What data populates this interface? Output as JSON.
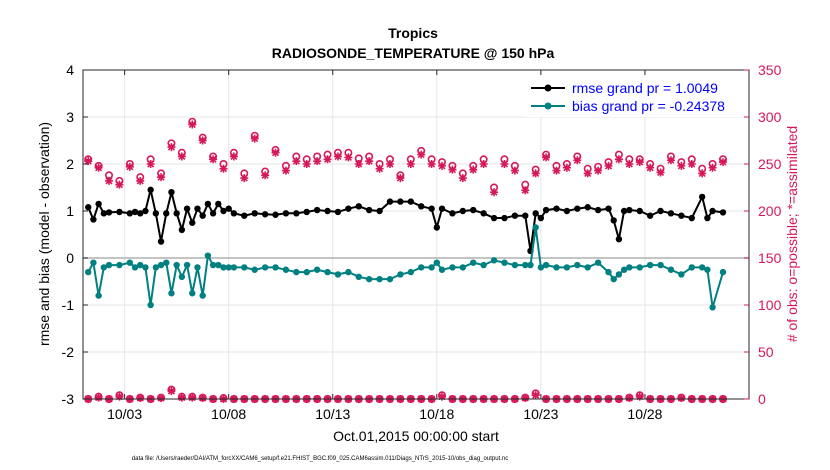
{
  "chart_data": {
    "type": "line",
    "title": "Tropics",
    "subtitle": "RADIOSONDE_TEMPERATURE @ 150 hPa",
    "xlabel": "Oct.01,2015 00:00:00 start",
    "ylabel": "rmse and bias (model - observation)",
    "y2label": "# of obs: o=possible; *=assimilated",
    "footnote": "data file: /Users/raeder/DAI/ATM_forcXX/CAM6_setup/f.e21.FHIST_BGC.f09_025.CAM6assim.011/Diags_NTrS_2015-10/obs_diag_output.nc",
    "xlim": [
      1,
      33
    ],
    "ylim": [
      -3,
      4
    ],
    "y2lim": [
      0,
      350
    ],
    "xticks": [
      3,
      8,
      13,
      18,
      23,
      28
    ],
    "xtick_labels": [
      "10/03",
      "10/08",
      "10/13",
      "10/18",
      "10/23",
      "10/28"
    ],
    "yticks": [
      -3,
      -2,
      -1,
      0,
      1,
      2,
      3,
      4
    ],
    "ytick_labels": [
      "-3",
      "-2",
      "-1",
      "0",
      "1",
      "2",
      "3",
      "4"
    ],
    "y2ticks": [
      0,
      50,
      100,
      150,
      200,
      250,
      300,
      350
    ],
    "y2tick_labels": [
      "0",
      "50",
      "100",
      "150",
      "200",
      "250",
      "300",
      "350"
    ],
    "grid": true,
    "legend_position": "top-right",
    "colors": {
      "rmse": "#000000",
      "bias": "#008080",
      "obs": "#d6185a",
      "zero": "#b0b0b0",
      "legend_text": "#0000ff",
      "axis": "#262626"
    },
    "series": [
      {
        "name": "rmse grand pr = 1.0049",
        "axis": "left",
        "x": [
          1.25,
          1.5,
          1.75,
          2,
          2.25,
          2.75,
          3.25,
          3.5,
          3.75,
          4,
          4.25,
          4.5,
          4.75,
          5,
          5.25,
          5.5,
          5.75,
          6,
          6.25,
          6.5,
          6.75,
          7,
          7.25,
          7.5,
          7.75,
          8,
          8.25,
          8.75,
          9.25,
          9.75,
          10.25,
          10.75,
          11.25,
          11.75,
          12.25,
          12.75,
          13.25,
          13.75,
          14.25,
          14.75,
          15.25,
          15.75,
          16.25,
          16.75,
          17.25,
          17.75,
          18,
          18.25,
          18.75,
          19.25,
          19.75,
          20.25,
          20.75,
          21.25,
          21.75,
          22.25,
          22.5,
          22.75,
          23,
          23.25,
          23.75,
          24.25,
          24.75,
          25.25,
          25.75,
          26.25,
          26.5,
          26.75,
          27,
          27.25,
          27.75,
          28.25,
          28.75,
          29.25,
          29.75,
          30.25,
          30.75,
          31,
          31.25,
          31.75
        ],
        "values": [
          1.08,
          0.82,
          1.15,
          0.95,
          0.97,
          0.98,
          0.95,
          0.98,
          0.95,
          1.0,
          1.45,
          0.95,
          0.35,
          0.95,
          1.4,
          0.95,
          0.6,
          1.05,
          0.75,
          1.05,
          0.9,
          1.15,
          0.95,
          1.15,
          1.0,
          1.05,
          0.95,
          0.9,
          0.95,
          0.93,
          0.92,
          0.95,
          0.95,
          0.98,
          1.02,
          1.0,
          0.98,
          1.05,
          1.1,
          1.02,
          1.0,
          1.2,
          1.2,
          1.2,
          1.1,
          1.05,
          0.65,
          1.05,
          0.95,
          1.0,
          1.02,
          0.95,
          0.85,
          0.85,
          0.9,
          0.9,
          0.15,
          0.95,
          0.85,
          1.02,
          1.05,
          1.0,
          1.05,
          1.08,
          1.02,
          1.05,
          0.8,
          0.4,
          1.0,
          1.02,
          1.0,
          0.9,
          1.0,
          0.95,
          0.9,
          0.85,
          1.3,
          0.85,
          1.0,
          0.97
        ]
      },
      {
        "name": "bias grand pr = -0.24378",
        "axis": "left",
        "x": [
          1.25,
          1.5,
          1.75,
          2,
          2.25,
          2.75,
          3.25,
          3.5,
          3.75,
          4,
          4.25,
          4.5,
          4.75,
          5,
          5.25,
          5.5,
          5.75,
          6,
          6.25,
          6.5,
          6.75,
          7,
          7.25,
          7.5,
          7.75,
          8,
          8.25,
          8.75,
          9.25,
          9.75,
          10.25,
          10.75,
          11.25,
          11.75,
          12.25,
          12.75,
          13.25,
          13.75,
          14.25,
          14.75,
          15.25,
          15.75,
          16.25,
          16.75,
          17.25,
          17.75,
          18,
          18.25,
          18.75,
          19.25,
          19.75,
          20.25,
          20.75,
          21.25,
          21.75,
          22.25,
          22.5,
          22.75,
          23,
          23.25,
          23.75,
          24.25,
          24.75,
          25.25,
          25.75,
          26.25,
          26.5,
          26.75,
          27,
          27.25,
          27.75,
          28.25,
          28.75,
          29.25,
          29.75,
          30.25,
          30.75,
          31,
          31.25,
          31.75
        ],
        "values": [
          -0.3,
          -0.1,
          -0.8,
          -0.2,
          -0.15,
          -0.15,
          -0.1,
          -0.2,
          -0.15,
          -0.2,
          -1.0,
          -0.2,
          -0.15,
          -0.1,
          -0.75,
          -0.15,
          -0.4,
          -0.15,
          -0.75,
          -0.2,
          -0.8,
          0.05,
          -0.15,
          -0.15,
          -0.2,
          -0.2,
          -0.2,
          -0.2,
          -0.25,
          -0.2,
          -0.2,
          -0.25,
          -0.3,
          -0.3,
          -0.25,
          -0.3,
          -0.35,
          -0.3,
          -0.4,
          -0.45,
          -0.45,
          -0.45,
          -0.35,
          -0.3,
          -0.2,
          -0.2,
          -0.1,
          -0.25,
          -0.2,
          -0.2,
          -0.1,
          -0.15,
          -0.05,
          -0.1,
          -0.15,
          -0.15,
          -0.15,
          0.65,
          -0.2,
          -0.15,
          -0.2,
          -0.2,
          -0.15,
          -0.2,
          -0.1,
          -0.3,
          -0.45,
          -0.35,
          -0.25,
          -0.2,
          -0.2,
          -0.15,
          -0.15,
          -0.25,
          -0.35,
          -0.2,
          -0.2,
          -0.25,
          -1.05,
          -0.3
        ]
      },
      {
        "name": "# of obs possible",
        "axis": "right",
        "marker": "o",
        "x": [
          1.25,
          1.75,
          2.25,
          2.75,
          3.25,
          3.75,
          4.25,
          4.75,
          5.25,
          5.75,
          6.25,
          6.75,
          7.25,
          7.75,
          8.25,
          8.75,
          9.25,
          9.75,
          10.25,
          10.75,
          11.25,
          11.75,
          12.25,
          12.75,
          13.25,
          13.75,
          14.25,
          14.75,
          15.25,
          15.75,
          16.25,
          16.75,
          17.25,
          17.75,
          18.25,
          18.75,
          19.25,
          19.75,
          20.25,
          20.75,
          21.25,
          21.75,
          22.25,
          22.75,
          23.25,
          23.75,
          24.25,
          24.75,
          25.25,
          25.75,
          26.25,
          26.75,
          27.25,
          27.75,
          28.25,
          28.75,
          29.25,
          29.75,
          30.25,
          30.75,
          31.25,
          31.75
        ],
        "values": [
          255,
          248,
          238,
          232,
          250,
          236,
          255,
          240,
          272,
          262,
          295,
          278,
          258,
          250,
          262,
          240,
          280,
          242,
          265,
          248,
          258,
          255,
          258,
          260,
          262,
          262,
          256,
          258,
          250,
          255,
          238,
          255,
          264,
          255,
          252,
          248,
          240,
          248,
          255,
          225,
          255,
          248,
          228,
          244,
          260,
          248,
          250,
          258,
          245,
          247,
          252,
          260,
          255,
          255,
          250,
          245,
          258,
          252,
          255,
          245,
          250,
          255
        ]
      },
      {
        "name": "# of obs assimilated",
        "axis": "right",
        "marker": "*",
        "x": [
          1.25,
          1.75,
          2.25,
          2.75,
          3.25,
          3.75,
          4.25,
          4.75,
          5.25,
          5.75,
          6.25,
          6.75,
          7.25,
          7.75,
          8.25,
          8.75,
          9.25,
          9.75,
          10.25,
          10.75,
          11.25,
          11.75,
          12.25,
          12.75,
          13.25,
          13.75,
          14.25,
          14.75,
          15.25,
          15.75,
          16.25,
          16.75,
          17.25,
          17.75,
          18.25,
          18.75,
          19.25,
          19.75,
          20.25,
          20.75,
          21.25,
          21.75,
          22.25,
          22.75,
          23.25,
          23.75,
          24.25,
          24.75,
          25.25,
          25.75,
          26.25,
          26.75,
          27.25,
          27.75,
          28.25,
          28.75,
          29.25,
          29.75,
          30.25,
          30.75,
          31.25,
          31.75
        ],
        "values": [
          253,
          246,
          232,
          228,
          247,
          232,
          250,
          236,
          268,
          258,
          292,
          275,
          255,
          245,
          258,
          235,
          277,
          238,
          262,
          243,
          253,
          250,
          253,
          255,
          258,
          257,
          250,
          253,
          245,
          250,
          235,
          250,
          260,
          250,
          248,
          244,
          235,
          244,
          250,
          220,
          250,
          243,
          222,
          240,
          257,
          243,
          246,
          254,
          240,
          243,
          248,
          255,
          250,
          252,
          246,
          241,
          254,
          248,
          250,
          240,
          246,
          252
        ]
      },
      {
        "name": "# of obs possible (bottom)",
        "axis": "left",
        "marker": "o",
        "x": [
          1.25,
          1.75,
          2.25,
          2.75,
          3.25,
          3.75,
          4.25,
          4.75,
          5.25,
          5.75,
          6.25,
          6.75,
          7.25,
          7.75,
          8.25,
          8.75,
          9.25,
          9.75,
          10.25,
          10.75,
          11.25,
          11.75,
          12.25,
          12.75,
          13.25,
          13.75,
          14.25,
          14.75,
          15.25,
          15.75,
          16.25,
          16.75,
          17.25,
          17.75,
          18.25,
          18.75,
          19.25,
          19.75,
          20.25,
          20.75,
          21.25,
          21.75,
          22.25,
          22.75,
          23.25,
          23.75,
          24.25,
          24.75,
          25.25,
          25.75,
          26.25,
          26.75,
          27.25,
          27.75,
          28.25,
          28.75,
          29.25,
          29.75,
          30.25,
          30.75,
          31.25,
          31.75
        ],
        "values": [
          -3.0,
          -2.95,
          -3.0,
          -2.92,
          -3.0,
          -2.97,
          -3.0,
          -2.97,
          -2.8,
          -2.95,
          -2.95,
          -2.97,
          -3.0,
          -2.98,
          -3.0,
          -3.0,
          -3.0,
          -3.0,
          -3.0,
          -3.0,
          -3.0,
          -3.0,
          -3.0,
          -3.0,
          -3.0,
          -3.0,
          -3.0,
          -3.0,
          -3.0,
          -3.0,
          -3.0,
          -3.0,
          -3.0,
          -3.0,
          -2.92,
          -3.0,
          -3.0,
          -3.0,
          -3.0,
          -3.0,
          -3.0,
          -3.0,
          -2.97,
          -2.88,
          -3.0,
          -3.0,
          -3.0,
          -3.0,
          -3.0,
          -3.0,
          -3.0,
          -3.0,
          -2.97,
          -2.92,
          -3.0,
          -3.0,
          -3.0,
          -2.97,
          -3.0,
          -3.0,
          -3.0,
          -3.0
        ]
      },
      {
        "name": "# of obs assimilated (bottom)",
        "axis": "left",
        "marker": "*",
        "x": [
          1.25,
          1.75,
          2.25,
          2.75,
          3.25,
          3.75,
          4.25,
          4.75,
          5.25,
          5.75,
          6.25,
          6.75,
          7.25,
          7.75,
          8.25,
          8.75,
          9.25,
          9.75,
          10.25,
          10.75,
          11.25,
          11.75,
          12.25,
          12.75,
          13.25,
          13.75,
          14.25,
          14.75,
          15.25,
          15.75,
          16.25,
          16.75,
          17.25,
          17.75,
          18.25,
          18.75,
          19.25,
          19.75,
          20.25,
          20.75,
          21.25,
          21.75,
          22.25,
          22.75,
          23.25,
          23.75,
          24.25,
          24.75,
          25.25,
          25.75,
          26.25,
          26.75,
          27.25,
          27.75,
          28.25,
          28.75,
          29.25,
          29.75,
          30.25,
          30.75,
          31.25,
          31.75
        ],
        "values": [
          -3.0,
          -2.97,
          -3.0,
          -2.95,
          -3.0,
          -2.98,
          -3.0,
          -2.98,
          -2.83,
          -2.97,
          -2.97,
          -2.98,
          -3.0,
          -3.0,
          -3.0,
          -3.0,
          -3.0,
          -3.0,
          -3.0,
          -3.0,
          -3.0,
          -3.0,
          -3.0,
          -3.0,
          -3.0,
          -3.0,
          -3.0,
          -3.0,
          -3.0,
          -3.0,
          -3.0,
          -3.0,
          -3.0,
          -3.0,
          -2.95,
          -3.0,
          -3.0,
          -3.0,
          -3.0,
          -3.0,
          -3.0,
          -3.0,
          -2.98,
          -2.92,
          -3.0,
          -3.0,
          -3.0,
          -3.0,
          -3.0,
          -3.0,
          -3.0,
          -3.0,
          -2.98,
          -2.95,
          -3.0,
          -3.0,
          -3.0,
          -2.98,
          -3.0,
          -3.0,
          -3.0,
          -3.0
        ]
      }
    ]
  }
}
